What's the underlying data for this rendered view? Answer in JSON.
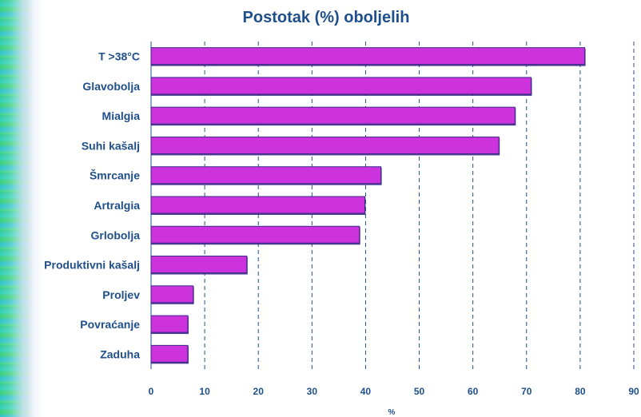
{
  "colors": {
    "bar": "#cc33dd",
    "bar_edge": "#3b2a8a",
    "grid": "#1f4f8a",
    "text": "#1f4f8a"
  },
  "chart_data": {
    "type": "bar",
    "orientation": "horizontal",
    "title": "Postotak (%) oboljelih",
    "xlabel": "%",
    "ylabel": "",
    "categories": [
      "T >38°C",
      "Glavobolja",
      "Mialgia",
      "Suhi kašalj",
      "Šmrcanje",
      "Artralgia",
      "Grlobolja",
      "Produktivni kašalj",
      "Proljev",
      "Povraćanje",
      "Zaduha"
    ],
    "values": [
      81,
      71,
      68,
      65,
      43,
      40,
      39,
      18,
      8,
      7,
      7
    ],
    "xlim": [
      0,
      90
    ],
    "xticks": [
      0,
      10,
      20,
      30,
      40,
      50,
      60,
      70,
      80,
      90
    ],
    "grid": "vertical",
    "legend": "none"
  }
}
